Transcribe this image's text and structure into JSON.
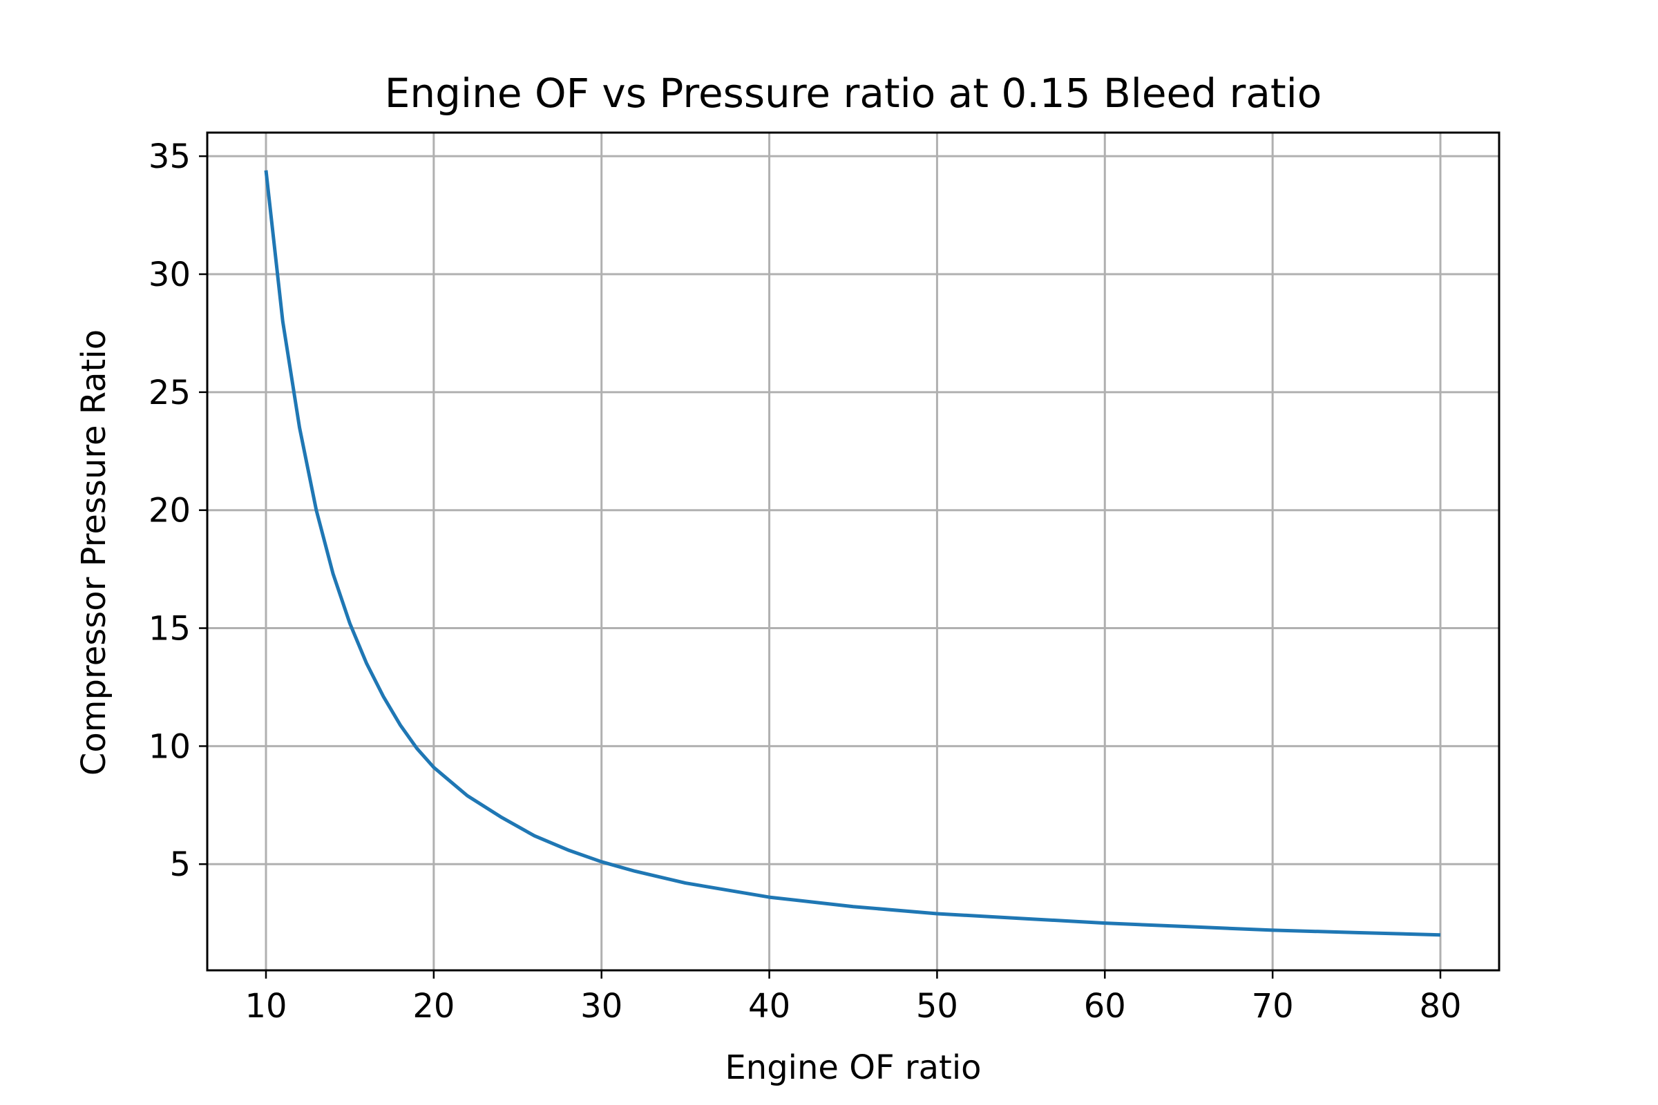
{
  "chart_data": {
    "type": "line",
    "title": "Engine OF vs Pressure ratio at 0.15 Bleed ratio",
    "xlabel": "Engine OF ratio",
    "ylabel": "Compressor Pressure Ratio",
    "xlim": [
      6.5,
      83.5
    ],
    "ylim": [
      0.5,
      36
    ],
    "xticks": [
      10,
      20,
      30,
      40,
      50,
      60,
      70,
      80
    ],
    "yticks": [
      5,
      10,
      15,
      20,
      25,
      30,
      35
    ],
    "grid": true,
    "legend": "none",
    "series": [
      {
        "color": "#1f77b4",
        "x": [
          10,
          11,
          12,
          13,
          14,
          15,
          16,
          17,
          18,
          19,
          20,
          22,
          24,
          26,
          28,
          30,
          32,
          35,
          40,
          45,
          50,
          55,
          60,
          65,
          70,
          75,
          80
        ],
        "y": [
          34.4,
          28.0,
          23.5,
          20.0,
          17.3,
          15.2,
          13.5,
          12.1,
          10.9,
          9.9,
          9.1,
          7.9,
          7.0,
          6.2,
          5.6,
          5.1,
          4.7,
          4.2,
          3.6,
          3.2,
          2.9,
          2.7,
          2.5,
          2.35,
          2.2,
          2.1,
          2.0
        ]
      }
    ]
  }
}
